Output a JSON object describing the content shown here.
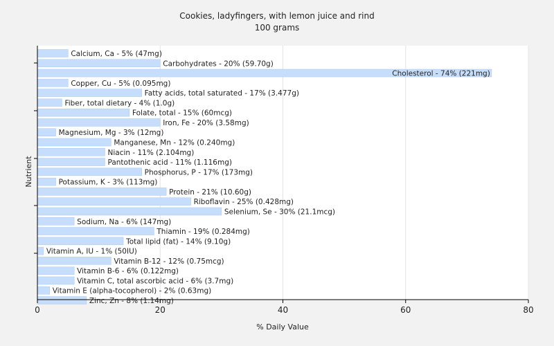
{
  "chart_data": {
    "type": "bar",
    "orientation": "horizontal",
    "title": "Cookies, ladyfingers, with lemon juice and rind",
    "subtitle": "100 grams",
    "xlabel": "% Daily Value",
    "ylabel": "Nutrient",
    "xlim": [
      0,
      80
    ],
    "xticks": [
      0,
      20,
      40,
      60,
      80
    ],
    "grid": true,
    "bar_color": "#c6defc",
    "bar_stroke": "#aac8f0",
    "background": "#f2f2f2",
    "plot_background": "#ffffff",
    "categories": [
      "Calcium, Ca",
      "Carbohydrates",
      "Cholesterol",
      "Copper, Cu",
      "Fatty acids, total saturated",
      "Fiber, total dietary",
      "Folate, total",
      "Iron, Fe",
      "Magnesium, Mg",
      "Manganese, Mn",
      "Niacin",
      "Pantothenic acid",
      "Phosphorus, P",
      "Potassium, K",
      "Protein",
      "Riboflavin",
      "Selenium, Se",
      "Sodium, Na",
      "Thiamin",
      "Total lipid (fat)",
      "Vitamin A, IU",
      "Vitamin B-12",
      "Vitamin B-6",
      "Vitamin C, total ascorbic acid",
      "Vitamin E (alpha-tocopherol)",
      "Zinc, Zn"
    ],
    "values": [
      5,
      20,
      74,
      5,
      17,
      4,
      15,
      20,
      3,
      12,
      11,
      11,
      17,
      3,
      21,
      25,
      30,
      6,
      19,
      14,
      1,
      12,
      6,
      6,
      2,
      8
    ],
    "labels": [
      "Calcium, Ca - 5% (47mg)",
      "Carbohydrates - 20% (59.70g)",
      "Cholesterol - 74% (221mg)",
      "Copper, Cu - 5% (0.095mg)",
      "Fatty acids, total saturated - 17% (3.477g)",
      "Fiber, total dietary - 4% (1.0g)",
      "Folate, total - 15% (60mcg)",
      "Iron, Fe - 20% (3.58mg)",
      "Magnesium, Mg - 3% (12mg)",
      "Manganese, Mn - 12% (0.240mg)",
      "Niacin - 11% (2.104mg)",
      "Pantothenic acid - 11% (1.116mg)",
      "Phosphorus, P - 17% (173mg)",
      "Potassium, K - 3% (113mg)",
      "Protein - 21% (10.60g)",
      "Riboflavin - 25% (0.428mg)",
      "Selenium, Se - 30% (21.1mcg)",
      "Sodium, Na - 6% (147mg)",
      "Thiamin - 19% (0.284mg)",
      "Total lipid (fat) - 14% (9.10g)",
      "Vitamin A, IU - 1% (50IU)",
      "Vitamin B-12 - 12% (0.75mcg)",
      "Vitamin B-6 - 6% (0.122mg)",
      "Vitamin C, total ascorbic acid - 6% (3.7mg)",
      "Vitamin E (alpha-tocopherol) - 2% (0.63mg)",
      "Zinc, Zn - 8% (1.14mg)"
    ]
  }
}
